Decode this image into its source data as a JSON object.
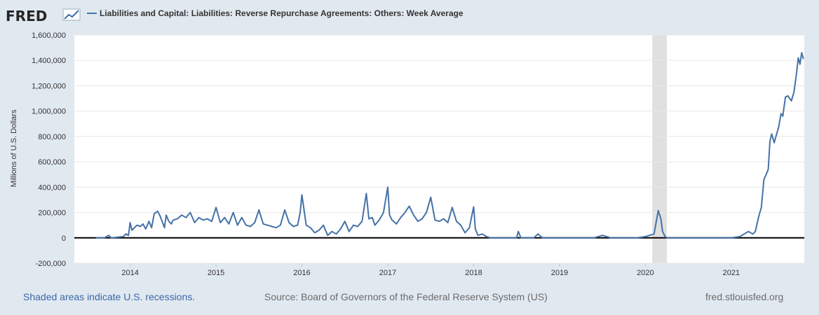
{
  "header": {
    "logo_text": "FRED",
    "legend_label": "Liabilities and Capital: Liabilities: Reverse Repurchase Agreements: Others: Week Average"
  },
  "footer": {
    "recession_note": "Shaded areas indicate U.S. recessions.",
    "source": "Source: Board of Governors of the Federal Reserve System (US)",
    "site": "fred.stlouisfed.org"
  },
  "colors": {
    "series": "#4572a7",
    "recession": "#e0e0e0",
    "plot_bg": "#ffffff",
    "grid": "#e8e8e8",
    "zero_line": "#000000"
  },
  "chart_data": {
    "type": "line",
    "title": "Liabilities and Capital: Liabilities: Reverse Repurchase Agreements: Others: Week Average",
    "xlabel": "",
    "ylabel": "Millions of U.S. Dollars",
    "ylim": [
      -200000,
      1600000
    ],
    "xlim": [
      2013.35,
      2021.85
    ],
    "yticks": [
      -200000,
      0,
      200000,
      400000,
      600000,
      800000,
      1000000,
      1200000,
      1400000,
      1600000
    ],
    "ytick_labels": [
      "-200,000",
      "0",
      "200,000",
      "400,000",
      "600,000",
      "800,000",
      "1,000,000",
      "1,200,000",
      "1,400,000",
      "1,600,000"
    ],
    "xticks": [
      2014,
      2015,
      2016,
      2017,
      2018,
      2019,
      2020,
      2021
    ],
    "xtick_labels": [
      "2014",
      "2015",
      "2016",
      "2017",
      "2018",
      "2019",
      "2020",
      "2021"
    ],
    "grid": true,
    "recessions": [
      [
        2020.08,
        2020.25
      ]
    ],
    "series": [
      {
        "name": "Liabilities and Capital: Liabilities: Reverse Repurchase Agreements: Others: Week Average",
        "x": [
          2013.6,
          2013.7,
          2013.75,
          2013.78,
          2013.85,
          2013.92,
          2013.95,
          2013.98,
          2014.0,
          2014.02,
          2014.05,
          2014.08,
          2014.12,
          2014.15,
          2014.18,
          2014.22,
          2014.25,
          2014.28,
          2014.32,
          2014.35,
          2014.4,
          2014.42,
          2014.45,
          2014.48,
          2014.5,
          2014.55,
          2014.6,
          2014.65,
          2014.7,
          2014.75,
          2014.8,
          2014.85,
          2014.9,
          2014.95,
          2015.0,
          2015.05,
          2015.1,
          2015.15,
          2015.2,
          2015.25,
          2015.3,
          2015.35,
          2015.4,
          2015.45,
          2015.5,
          2015.55,
          2015.6,
          2015.65,
          2015.7,
          2015.75,
          2015.8,
          2015.85,
          2015.9,
          2015.95,
          2015.98,
          2016.0,
          2016.05,
          2016.1,
          2016.15,
          2016.2,
          2016.25,
          2016.3,
          2016.35,
          2016.4,
          2016.45,
          2016.5,
          2016.55,
          2016.6,
          2016.65,
          2016.7,
          2016.75,
          2016.78,
          2016.82,
          2016.85,
          2016.9,
          2016.95,
          2017.0,
          2017.02,
          2017.05,
          2017.1,
          2017.15,
          2017.2,
          2017.25,
          2017.3,
          2017.35,
          2017.4,
          2017.45,
          2017.5,
          2017.55,
          2017.6,
          2017.65,
          2017.7,
          2017.75,
          2017.8,
          2017.85,
          2017.9,
          2017.95,
          2018.0,
          2018.02,
          2018.05,
          2018.1,
          2018.15,
          2018.2,
          2018.3,
          2018.4,
          2018.45,
          2018.5,
          2018.52,
          2018.55,
          2018.7,
          2018.75,
          2018.8,
          2019.0,
          2019.2,
          2019.4,
          2019.5,
          2019.6,
          2019.7,
          2019.8,
          2019.9,
          2020.0,
          2020.1,
          2020.15,
          2020.18,
          2020.2,
          2020.23,
          2020.25,
          2020.3,
          2020.5,
          2020.7,
          2020.9,
          2021.0,
          2021.1,
          2021.2,
          2021.25,
          2021.28,
          2021.32,
          2021.35,
          2021.38,
          2021.4,
          2021.43,
          2021.45,
          2021.47,
          2021.5,
          2021.52,
          2021.55,
          2021.58,
          2021.6,
          2021.63,
          2021.66,
          2021.7,
          2021.73,
          2021.76,
          2021.78,
          2021.8,
          2021.82,
          2021.84
        ],
        "y": [
          0,
          0,
          20000,
          0,
          5000,
          10000,
          30000,
          20000,
          120000,
          60000,
          80000,
          100000,
          90000,
          110000,
          70000,
          130000,
          80000,
          190000,
          210000,
          170000,
          80000,
          180000,
          130000,
          110000,
          140000,
          150000,
          180000,
          160000,
          200000,
          120000,
          160000,
          140000,
          150000,
          130000,
          240000,
          120000,
          160000,
          110000,
          200000,
          100000,
          160000,
          100000,
          90000,
          120000,
          220000,
          110000,
          100000,
          90000,
          80000,
          100000,
          220000,
          120000,
          90000,
          100000,
          200000,
          340000,
          100000,
          80000,
          40000,
          60000,
          100000,
          20000,
          50000,
          30000,
          70000,
          130000,
          50000,
          100000,
          90000,
          130000,
          350000,
          150000,
          160000,
          100000,
          140000,
          200000,
          400000,
          180000,
          140000,
          110000,
          160000,
          200000,
          250000,
          180000,
          130000,
          150000,
          200000,
          320000,
          140000,
          130000,
          150000,
          120000,
          240000,
          130000,
          100000,
          40000,
          80000,
          245000,
          70000,
          20000,
          30000,
          10000,
          0,
          0,
          0,
          0,
          0,
          50000,
          0,
          0,
          30000,
          0,
          0,
          0,
          0,
          20000,
          0,
          0,
          0,
          0,
          10000,
          30000,
          215000,
          150000,
          50000,
          10000,
          0,
          0,
          0,
          0,
          0,
          0,
          10000,
          50000,
          30000,
          50000,
          170000,
          240000,
          460000,
          490000,
          540000,
          760000,
          820000,
          750000,
          800000,
          870000,
          980000,
          960000,
          1110000,
          1120000,
          1080000,
          1150000,
          1300000,
          1420000,
          1370000,
          1460000,
          1410000
        ]
      }
    ]
  }
}
